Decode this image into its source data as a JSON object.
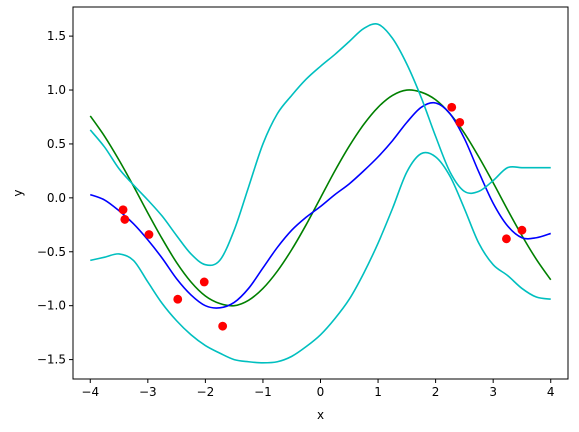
{
  "chart_data": {
    "type": "line",
    "xlabel": "x",
    "ylabel": "y",
    "xlim": [
      -4.3,
      4.3
    ],
    "ylim": [
      -1.68,
      1.77
    ],
    "x_ticks": [
      -4,
      -3,
      -2,
      -1,
      0,
      1,
      2,
      3,
      4
    ],
    "x_tick_labels": [
      "−4",
      "−3",
      "−2",
      "−1",
      "0",
      "1",
      "2",
      "3",
      "4"
    ],
    "y_ticks": [
      -1.5,
      -1.0,
      -0.5,
      0.0,
      0.5,
      1.0,
      1.5
    ],
    "y_tick_labels": [
      "−1.5",
      "−1.0",
      "−0.5",
      "0.0",
      "0.5",
      "1.0",
      "1.5"
    ],
    "grid": false,
    "series": [
      {
        "color": "#008000",
        "x": [
          -4.0,
          -3.75,
          -3.5,
          -3.25,
          -3.0,
          -2.75,
          -2.5,
          -2.25,
          -2.0,
          -1.75,
          -1.5,
          -1.25,
          -1.0,
          -0.75,
          -0.5,
          -0.25,
          0.0,
          0.25,
          0.5,
          0.75,
          1.0,
          1.25,
          1.5,
          1.75,
          2.0,
          2.25,
          2.5,
          2.75,
          3.0,
          3.25,
          3.5,
          3.75,
          4.0
        ],
        "y": [
          0.76,
          0.57,
          0.35,
          0.11,
          -0.14,
          -0.38,
          -0.6,
          -0.78,
          -0.91,
          -0.98,
          -1.0,
          -0.95,
          -0.84,
          -0.68,
          -0.48,
          -0.25,
          0.0,
          0.25,
          0.48,
          0.68,
          0.84,
          0.95,
          1.0,
          0.98,
          0.91,
          0.78,
          0.6,
          0.38,
          0.14,
          -0.11,
          -0.35,
          -0.57,
          -0.76
        ]
      },
      {
        "color": "#0000ff",
        "x": [
          -4.0,
          -3.75,
          -3.5,
          -3.25,
          -3.0,
          -2.75,
          -2.5,
          -2.25,
          -2.0,
          -1.75,
          -1.5,
          -1.25,
          -1.0,
          -0.75,
          -0.5,
          -0.25,
          0.0,
          0.25,
          0.5,
          0.75,
          1.0,
          1.25,
          1.5,
          1.75,
          2.0,
          2.25,
          2.5,
          2.75,
          3.0,
          3.25,
          3.5,
          3.75,
          4.0
        ],
        "y": [
          0.03,
          -0.02,
          -0.12,
          -0.24,
          -0.39,
          -0.56,
          -0.75,
          -0.9,
          -1.0,
          -1.02,
          -0.97,
          -0.84,
          -0.65,
          -0.46,
          -0.3,
          -0.18,
          -0.08,
          0.03,
          0.13,
          0.25,
          0.38,
          0.53,
          0.7,
          0.84,
          0.88,
          0.78,
          0.55,
          0.24,
          -0.05,
          -0.26,
          -0.37,
          -0.37,
          -0.33
        ]
      },
      {
        "color": "#00bfbf",
        "x": [
          -4.0,
          -3.75,
          -3.5,
          -3.25,
          -3.0,
          -2.75,
          -2.5,
          -2.25,
          -2.0,
          -1.75,
          -1.5,
          -1.25,
          -1.0,
          -0.75,
          -0.5,
          -0.25,
          0.0,
          0.25,
          0.5,
          0.75,
          1.0,
          1.25,
          1.5,
          1.75,
          2.0,
          2.25,
          2.5,
          2.75,
          3.0,
          3.25,
          3.5,
          3.75,
          4.0
        ],
        "y": [
          0.63,
          0.47,
          0.27,
          0.12,
          -0.02,
          -0.17,
          -0.35,
          -0.52,
          -0.62,
          -0.58,
          -0.3,
          0.1,
          0.5,
          0.78,
          0.95,
          1.1,
          1.22,
          1.33,
          1.45,
          1.57,
          1.61,
          1.48,
          1.24,
          0.93,
          0.57,
          0.24,
          0.06,
          0.06,
          0.16,
          0.28,
          0.0,
          0.0,
          0.0
        ]
      },
      {
        "color": "#00bfbf",
        "x": [
          -4.0,
          -3.75,
          -3.5,
          -3.25,
          -3.0,
          -2.75,
          -2.5,
          -2.25,
          -2.0,
          -1.75,
          -1.5,
          -1.25,
          -1.0,
          -0.75,
          -0.5,
          -0.25,
          0.0,
          0.25,
          0.5,
          0.75,
          1.0,
          1.25,
          1.5,
          1.75,
          2.0,
          2.25,
          2.5,
          2.75,
          3.0,
          3.25,
          3.5,
          3.75,
          4.0
        ],
        "y": [
          -0.58,
          -0.55,
          -0.52,
          -0.58,
          -0.78,
          -0.98,
          -1.14,
          -1.27,
          -1.37,
          -1.44,
          -1.5,
          -1.52,
          -1.53,
          -1.52,
          -1.47,
          -1.38,
          -1.27,
          -1.12,
          -0.94,
          -0.7,
          -0.42,
          -0.1,
          0.24,
          0.41,
          0.38,
          0.2,
          -0.1,
          -0.42,
          -0.62,
          -0.72,
          -0.84,
          -0.92,
          -0.94
        ]
      }
    ],
    "points": {
      "color": "#ff0000",
      "x": [
        -3.43,
        -3.4,
        -2.98,
        -2.48,
        -2.02,
        -1.7,
        2.28,
        2.42,
        3.23,
        3.5
      ],
      "y": [
        -0.11,
        -0.2,
        -0.34,
        -0.94,
        -0.78,
        -1.19,
        0.84,
        0.7,
        -0.38,
        -0.3
      ]
    }
  }
}
